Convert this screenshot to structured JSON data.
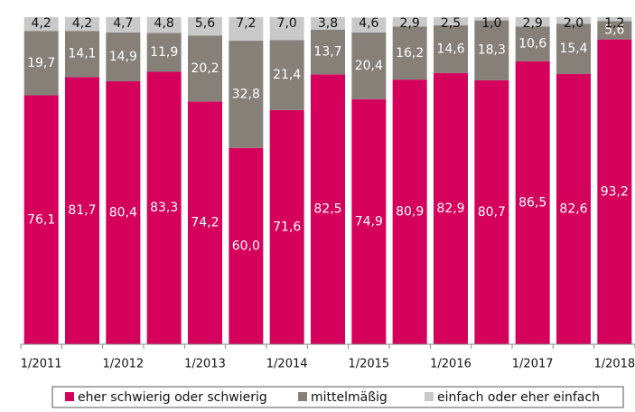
{
  "chart_data": {
    "type": "stacked_bar",
    "categories": [
      "1/2011",
      null,
      "1/2012",
      null,
      "1/2013",
      null,
      "1/2014",
      null,
      "1/2015",
      null,
      "1/2016",
      null,
      "1/2017",
      null,
      "1/2018"
    ],
    "ylim": [
      0,
      100
    ],
    "legend": "bottom",
    "series": [
      {
        "name": "eher schwierig oder schwierig",
        "color": "#d5005b",
        "values": [
          76.1,
          81.7,
          80.4,
          83.3,
          74.2,
          60.0,
          71.6,
          82.5,
          74.9,
          80.9,
          82.9,
          80.7,
          86.5,
          82.6,
          93.2
        ],
        "value_labels": [
          "76,1",
          "81,7",
          "80,4",
          "83,3",
          "74,2",
          "60,0",
          "71,6",
          "82,5",
          "74,9",
          "80,9",
          "82,9",
          "80,7",
          "86,5",
          "82,6",
          "93,2"
        ]
      },
      {
        "name": "mittelmäßig",
        "color": "#878079",
        "values": [
          19.7,
          14.1,
          14.9,
          11.9,
          20.2,
          32.8,
          21.4,
          13.7,
          20.4,
          16.2,
          14.6,
          18.3,
          10.6,
          15.4,
          5.6
        ],
        "value_labels": [
          "19,7",
          "14,1",
          "14,9",
          "11,9",
          "20,2",
          "32,8",
          "21,4",
          "13,7",
          "20,4",
          "16,2",
          "14,6",
          "18,3",
          "10,6",
          "15,4",
          "5,6"
        ]
      },
      {
        "name": "einfach oder eher einfach",
        "color": "#c9c9c9",
        "values": [
          4.2,
          4.2,
          4.7,
          4.8,
          5.6,
          7.2,
          7.0,
          3.8,
          4.6,
          2.9,
          2.5,
          1.0,
          2.9,
          2.0,
          1.2
        ],
        "value_labels": [
          "4,2",
          "4,2",
          "4,7",
          "4,8",
          "5,6",
          "7,2",
          "7,0",
          "3,8",
          "4,6",
          "2,9",
          "2,5",
          "1,0",
          "2,9",
          "2,0",
          "1,2"
        ]
      }
    ]
  }
}
